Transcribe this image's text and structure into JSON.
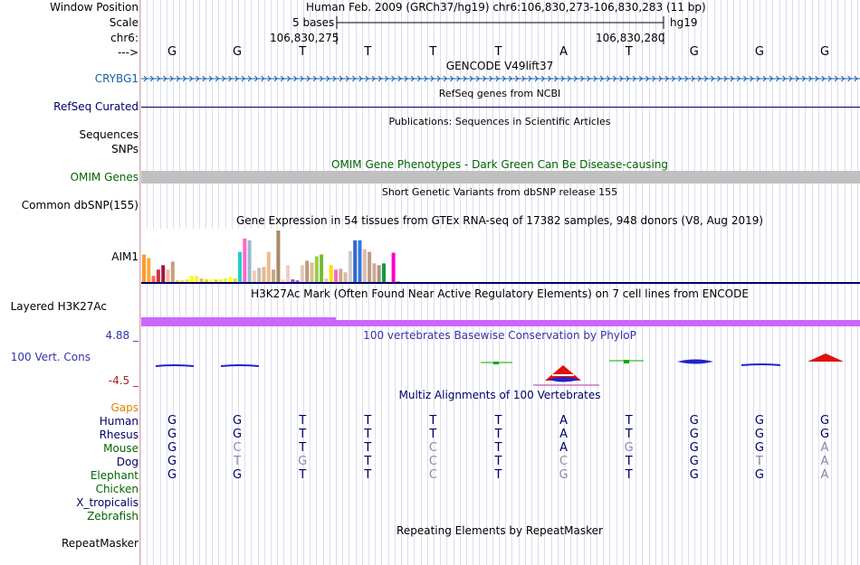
{
  "header": {
    "window_position_label": "Window Position",
    "scale_label": "Scale",
    "chr_label": "chr6:",
    "arrow_label": "--->",
    "assembly_position": "Human Feb. 2009 (GRCh37/hg19)   chr6:106,830,273-106,830,283 (11 bp)",
    "scale_text": "5 bases",
    "scale_db": "hg19",
    "coord_left": "106,830,275",
    "coord_right": "106,830,280",
    "sequence": [
      "G",
      "G",
      "T",
      "T",
      "T",
      "T",
      "A",
      "T",
      "G",
      "G",
      "G"
    ]
  },
  "tracks": {
    "gencode": {
      "title": "GENCODE V49lift37",
      "gene_label": "CRYBG1"
    },
    "refseq": {
      "title": "RefSeq genes from NCBI",
      "label": "RefSeq Curated"
    },
    "publications": {
      "title": "Publications: Sequences in Scientific Articles",
      "label_line1": "Sequences",
      "label_line2": "SNPs"
    },
    "omim": {
      "title": "OMIM Gene Phenotypes - Dark Green Can Be Disease-causing",
      "label": "OMIM Genes"
    },
    "dbsnp": {
      "title": "Short Genetic Variants from dbSNP release 155",
      "label": "Common dbSNP(155)"
    },
    "gtex": {
      "title": "Gene Expression in 54 tissues from GTEx RNA-seq of 17382 samples, 948 donors (V8, Aug 2019)",
      "label": "AIM1",
      "bars": [
        {
          "v": 32,
          "c": "#ff9933"
        },
        {
          "v": 28,
          "c": "#ffaa33"
        },
        {
          "v": 8,
          "c": "#ff6655"
        },
        {
          "v": 15,
          "c": "#cc3344"
        },
        {
          "v": 20,
          "c": "#aa1144"
        },
        {
          "v": 15,
          "c": "#eebbaa"
        },
        {
          "v": 24,
          "c": "#c8a07a"
        },
        {
          "v": 3,
          "c": "#eecc66"
        },
        {
          "v": 3,
          "c": "#ffdd22"
        },
        {
          "v": 4,
          "c": "#eeee22"
        },
        {
          "v": 8,
          "c": "#ffff00"
        },
        {
          "v": 8,
          "c": "#ffee44"
        },
        {
          "v": 5,
          "c": "#cccc55"
        },
        {
          "v": 4,
          "c": "#eedd00"
        },
        {
          "v": 4,
          "c": "#ffff44"
        },
        {
          "v": 4,
          "c": "#dddd22"
        },
        {
          "v": 4,
          "c": "#ffee33"
        },
        {
          "v": 5,
          "c": "#eeee55"
        },
        {
          "v": 7,
          "c": "#ffff22"
        },
        {
          "v": 5,
          "c": "#dddd44"
        },
        {
          "v": 35,
          "c": "#22cccc"
        },
        {
          "v": 50,
          "c": "#ff66cc"
        },
        {
          "v": 48,
          "c": "#99bbcc"
        },
        {
          "v": 14,
          "c": "#eeccbb"
        },
        {
          "v": 17,
          "c": "#ccbbaa"
        },
        {
          "v": 18,
          "c": "#ddbb99"
        },
        {
          "v": 35,
          "c": "#eebb88"
        },
        {
          "v": 15,
          "c": "#bbaa88"
        },
        {
          "v": 59,
          "c": "#aa8866"
        },
        {
          "v": 4,
          "c": "#ffccdd"
        },
        {
          "v": 20,
          "c": "#eecccc"
        },
        {
          "v": 4,
          "c": "#9955aa"
        },
        {
          "v": 3,
          "c": "#9966cc"
        },
        {
          "v": 20,
          "c": "#ddccbb"
        },
        {
          "v": 25,
          "c": "#bb9977"
        },
        {
          "v": 23,
          "c": "#ddbb99"
        },
        {
          "v": 30,
          "c": "#99cc44"
        },
        {
          "v": 32,
          "c": "#77bb33"
        },
        {
          "v": 5,
          "c": "#ddccbb"
        },
        {
          "v": 20,
          "c": "#ffdd00"
        },
        {
          "v": 15,
          "c": "#ff66cc"
        },
        {
          "v": 16,
          "c": "#ccaa88"
        },
        {
          "v": 12,
          "c": "#ddbb99"
        },
        {
          "v": 36,
          "c": "#cccccc"
        },
        {
          "v": 48,
          "c": "#3366cc"
        },
        {
          "v": 48,
          "c": "#3377dd"
        },
        {
          "v": 38,
          "c": "#ddbbaa"
        },
        {
          "v": 35,
          "c": "#bb9988"
        },
        {
          "v": 22,
          "c": "#ccaa99"
        },
        {
          "v": 20,
          "c": "#aa9977"
        },
        {
          "v": 22,
          "c": "#119944"
        },
        {
          "v": 3,
          "c": "#eeeeee"
        },
        {
          "v": 34,
          "c": "#ff00cc"
        },
        {
          "v": 2,
          "c": "#aaaaaa"
        }
      ]
    },
    "h3k27ac": {
      "title": "H3K27Ac Mark (Often Found Near Active Regulatory Elements) on 7 cell lines from ENCODE",
      "label": "Layered H3K27Ac"
    },
    "phylop": {
      "title": "100 vertebrates Basewise Conservation by PhyloP",
      "label": "100 Vert. Cons",
      "max": "4.88 _",
      "min": "-4.5 _"
    },
    "multiz": {
      "title": "Multiz Alignments of 100 Vertebrates",
      "gaps_label": "Gaps",
      "species": [
        {
          "name": "Human",
          "color": "#000066",
          "bases": [
            "G",
            "G",
            "T",
            "T",
            "T",
            "T",
            "A",
            "T",
            "G",
            "G",
            "G"
          ],
          "faded": [
            0,
            0,
            0,
            0,
            0,
            0,
            0,
            0,
            0,
            0,
            0
          ]
        },
        {
          "name": "Rhesus",
          "color": "#000066",
          "bases": [
            "G",
            "G",
            "T",
            "T",
            "T",
            "T",
            "A",
            "T",
            "G",
            "G",
            "G"
          ],
          "faded": [
            0,
            0,
            0,
            0,
            0,
            0,
            0,
            0,
            0,
            0,
            0
          ]
        },
        {
          "name": "Mouse",
          "color": "#006600",
          "bases": [
            "G",
            "C",
            "T",
            "T",
            "C",
            "T",
            "A",
            "G",
            "G",
            "G",
            "A"
          ],
          "faded": [
            0,
            1,
            0,
            0,
            1,
            0,
            0,
            1,
            0,
            0,
            1
          ]
        },
        {
          "name": "Dog",
          "color": "#000066",
          "bases": [
            "G",
            "T",
            "G",
            "T",
            "C",
            "T",
            "C",
            "T",
            "G",
            "T",
            "A"
          ],
          "faded": [
            0,
            1,
            1,
            0,
            1,
            0,
            1,
            0,
            0,
            1,
            1
          ]
        },
        {
          "name": "Elephant",
          "color": "#006600",
          "bases": [
            "G",
            "G",
            "T",
            "T",
            "C",
            "T",
            "G",
            "T",
            "G",
            "G",
            "A"
          ],
          "faded": [
            0,
            0,
            0,
            0,
            1,
            0,
            1,
            0,
            0,
            0,
            1
          ]
        },
        {
          "name": "Chicken",
          "color": "#006600",
          "bases": [],
          "faded": []
        },
        {
          "name": "X_tropicalis",
          "color": "#000066",
          "bases": [],
          "faded": []
        },
        {
          "name": "Zebrafish",
          "color": "#006600",
          "bases": [],
          "faded": []
        }
      ]
    },
    "repeatmasker": {
      "title": "Repeating Elements by RepeatMasker",
      "label": "RepeatMasker"
    }
  },
  "colors": {
    "track_navy": "#000066",
    "gencode_blue": "#1a5fa8",
    "omim_green": "#006400",
    "h3k27ac_purple": "#cc66ff",
    "gaps_orange": "#e08000",
    "phylop_blue": "#3333aa",
    "phylop_red": "#aa2222",
    "sidebar_border": "#e6a8a8"
  }
}
